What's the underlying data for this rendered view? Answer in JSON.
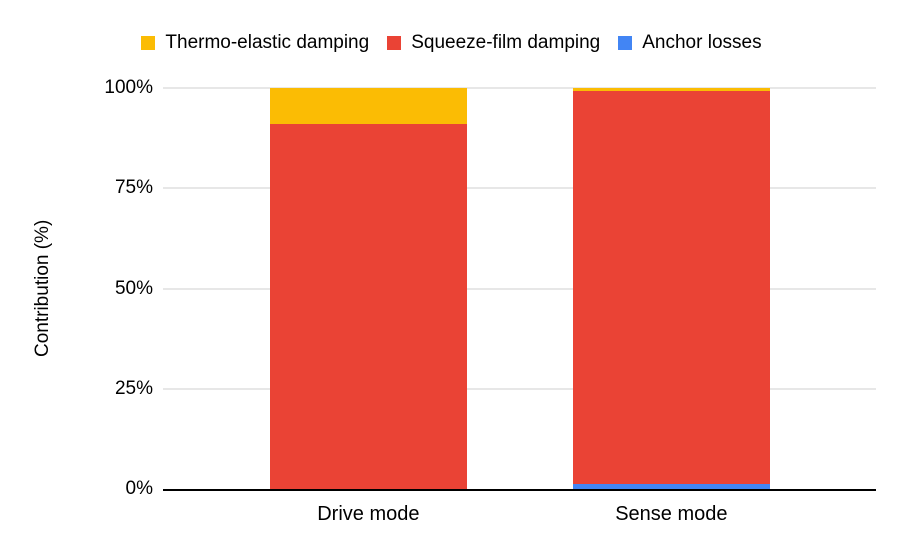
{
  "legend": {
    "items": [
      {
        "label": "Thermo-elastic damping",
        "color": "#FBBC04"
      },
      {
        "label": "Squeeze-film damping",
        "color": "#EA4335"
      },
      {
        "label": "Anchor losses",
        "color": "#4285F4"
      }
    ]
  },
  "y_axis": {
    "title": "Contribution (%)",
    "tick_labels": [
      "0%",
      "25%",
      "50%",
      "75%",
      "100%"
    ]
  },
  "x_axis": {
    "categories": [
      "Drive mode",
      "Sense mode"
    ]
  },
  "style_colors": {
    "gridline": "#CFCFCF",
    "axis": "#000000",
    "text": "#000000",
    "background": "#FFFFFF"
  },
  "chart_data": {
    "type": "bar",
    "subtype": "stacked-100",
    "title": "",
    "xlabel": "",
    "ylabel": "Contribution (%)",
    "categories": [
      "Drive mode",
      "Sense mode"
    ],
    "series": [
      {
        "name": "Anchor losses",
        "color": "#4285F4",
        "values": [
          0,
          1.2
        ]
      },
      {
        "name": "Squeeze-film damping",
        "color": "#EA4335",
        "values": [
          91,
          98.1
        ]
      },
      {
        "name": "Thermo-elastic damping",
        "color": "#FBBC04",
        "values": [
          9,
          0.7
        ]
      }
    ],
    "stack_order": "bottom-to-top",
    "ylim": [
      0,
      100
    ],
    "yticks": [
      0,
      25,
      50,
      75,
      100
    ],
    "ytick_format": "percent",
    "grid": true,
    "legend_position": "top"
  }
}
